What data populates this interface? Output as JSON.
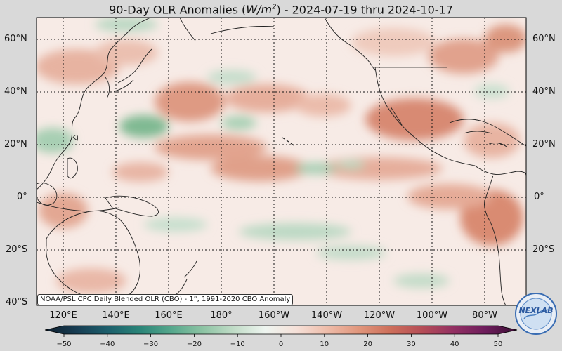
{
  "title": {
    "prefix": "90-Day OLR Anomalies (",
    "unit_base": "W/m",
    "unit_exp": "2",
    "suffix": ") - 2024-07-19 thru 2024-10-17"
  },
  "map": {
    "lat_labels": [
      "60°N",
      "40°N",
      "20°N",
      "0°",
      "20°S",
      "40°S"
    ],
    "lon_labels": [
      "120°E",
      "140°E",
      "160°E",
      "180°",
      "160°W",
      "140°W",
      "120°W",
      "100°W",
      "80°W"
    ],
    "credit": "NOAA/PSL CPC Daily Blended OLR (CBO) - 1°, 1991-2020 CBO Anomaly"
  },
  "colorbar": {
    "ticks": [
      "−50",
      "−40",
      "−30",
      "−20",
      "−10",
      "0",
      "10",
      "20",
      "30",
      "40",
      "50"
    ],
    "colors": [
      "#0e1f2e",
      "#173c52",
      "#1d5f6c",
      "#2a8478",
      "#55a78c",
      "#8cc3a3",
      "#c1dcc7",
      "#eef5f0",
      "#f5e0d8",
      "#eebba8",
      "#e0957b",
      "#cd6e5a",
      "#b54d57",
      "#923063",
      "#6d1d5c",
      "#3a0e33"
    ]
  },
  "logo": {
    "text": "NEXLAB"
  },
  "colors": {
    "positive": "#e3a590",
    "negative": "#8fc4a2",
    "land": "#222222",
    "grid": "#111111"
  }
}
